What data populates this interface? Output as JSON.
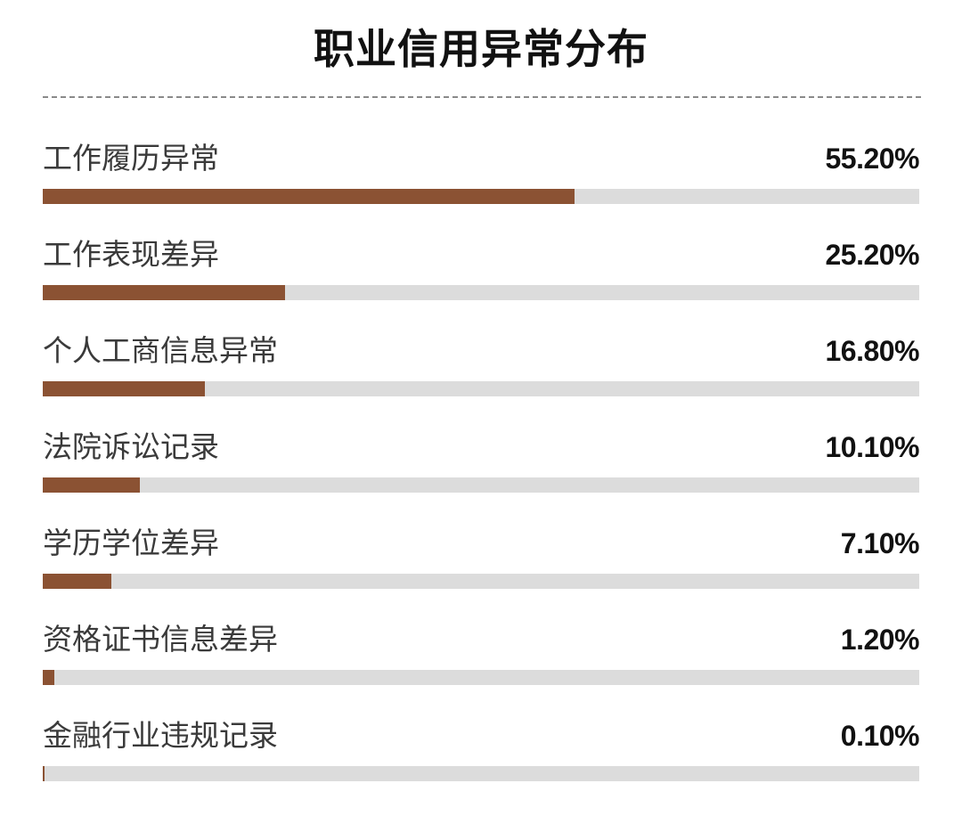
{
  "chart_data": {
    "type": "bar",
    "orientation": "horizontal",
    "title": "职业信用异常分布",
    "categories": [
      "工作履历异常",
      "工作表现差异",
      "个人工商信息异常",
      "法院诉讼记录",
      "学历学位差异",
      "资格证书信息差异",
      "金融行业违规记录"
    ],
    "values": [
      55.2,
      25.2,
      16.8,
      10.1,
      7.1,
      1.2,
      0.1
    ],
    "value_labels": [
      "55.20%",
      "25.20%",
      "16.80%",
      "10.10%",
      "7.10%",
      "1.20%",
      "0.10%"
    ],
    "xlim": [
      0,
      91
    ],
    "grid": false,
    "legend": "none",
    "colors": {
      "bar": "#8b5233",
      "track": "#dcdcdc"
    }
  }
}
